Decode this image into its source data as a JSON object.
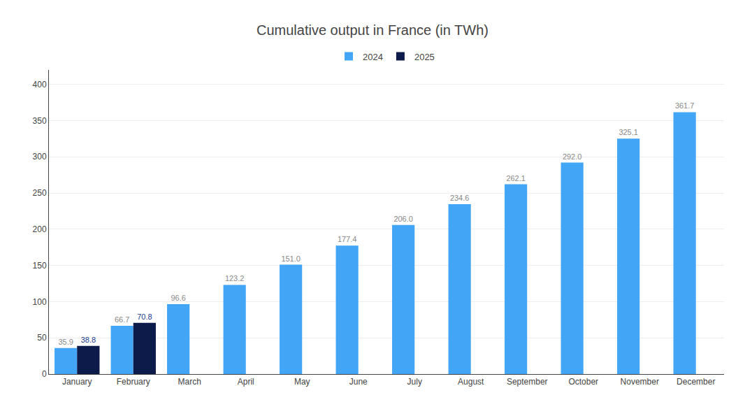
{
  "chart_data": {
    "type": "bar",
    "title": "Cumulative output in France (in TWh)",
    "categories": [
      "January",
      "February",
      "March",
      "April",
      "May",
      "June",
      "July",
      "August",
      "September",
      "October",
      "November",
      "December"
    ],
    "series": [
      {
        "name": "2024",
        "color": "#42a5f5",
        "values": [
          35.9,
          66.7,
          96.6,
          123.2,
          151.0,
          177.4,
          206.0,
          234.6,
          262.1,
          292.0,
          325.1,
          361.7
        ],
        "value_labels": [
          "35.9",
          "66.7",
          "96.6",
          "123.2",
          "151.0",
          "177.4",
          "206.0",
          "234.6",
          "262.1",
          "292.0",
          "325.1",
          "361.7"
        ]
      },
      {
        "name": "2025",
        "color": "#0d1b4b",
        "values": [
          38.8,
          70.8,
          null,
          null,
          null,
          null,
          null,
          null,
          null,
          null,
          null,
          null
        ],
        "value_labels": [
          "38.8",
          "70.8",
          null,
          null,
          null,
          null,
          null,
          null,
          null,
          null,
          null,
          null
        ]
      }
    ],
    "ylim": [
      0,
      420
    ],
    "yticks": [
      0,
      50,
      100,
      150,
      200,
      250,
      300,
      350,
      400
    ],
    "grid": true,
    "data_labels": true,
    "legend": "top"
  }
}
